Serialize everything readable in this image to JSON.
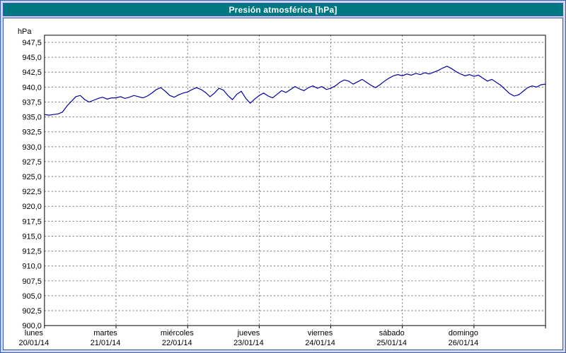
{
  "title": "Presión atmosférica [hPa]",
  "colors": {
    "background": "#ccd6ee",
    "frame_border": "#3a5fa8",
    "title_bar": "#007882",
    "title_text": "#ffffff",
    "plot_background": "#ffffff",
    "grid": "#6f6f6f",
    "axis": "#000000",
    "axis_text": "#000000",
    "series_line": "#0000a0"
  },
  "chart_data": {
    "type": "line",
    "title": "Presión atmosférica [hPa]",
    "y_unit_label": "hPa",
    "ylim": [
      900.0,
      947.5
    ],
    "y_step": 2.5,
    "y_tick_labels": [
      "947,5",
      "945,0",
      "942,5",
      "940,0",
      "937,5",
      "935,0",
      "932,5",
      "930,0",
      "927,5",
      "925,0",
      "922,5",
      "920,0",
      "917,5",
      "915,0",
      "912,5",
      "910,0",
      "907,5",
      "905,0",
      "902,5",
      "900,0"
    ],
    "grid": "dashed",
    "legend": "none",
    "x_days": [
      {
        "day": "lunes",
        "date": "20/01/14"
      },
      {
        "day": "martes",
        "date": "21/01/14"
      },
      {
        "day": "miércoles",
        "date": "22/01/14"
      },
      {
        "day": "jueves",
        "date": "23/01/14"
      },
      {
        "day": "viernes",
        "date": "24/01/14"
      },
      {
        "day": "sábado",
        "date": "25/01/14"
      },
      {
        "day": "domingo",
        "date": "26/01/14"
      }
    ],
    "points_per_day": 16,
    "series": [
      {
        "name": "Presión atmosférica",
        "values": [
          935.4,
          935.3,
          935.4,
          935.5,
          935.8,
          936.8,
          937.6,
          938.4,
          938.6,
          937.9,
          937.5,
          937.8,
          938.1,
          938.3,
          938.0,
          938.2,
          938.2,
          938.4,
          938.1,
          938.3,
          938.6,
          938.4,
          938.2,
          938.5,
          939.0,
          939.6,
          939.9,
          939.3,
          938.6,
          938.3,
          938.7,
          939.0,
          939.2,
          939.6,
          939.9,
          939.6,
          939.1,
          938.4,
          939.0,
          939.8,
          939.5,
          938.6,
          937.9,
          938.8,
          939.3,
          938.1,
          937.3,
          938.0,
          938.6,
          939.0,
          938.5,
          938.2,
          938.8,
          939.4,
          939.1,
          939.6,
          940.1,
          939.7,
          939.4,
          939.9,
          940.2,
          939.8,
          940.1,
          939.6,
          939.8,
          940.2,
          940.8,
          941.2,
          941.0,
          940.5,
          940.9,
          941.3,
          940.8,
          940.3,
          939.9,
          940.4,
          941.0,
          941.5,
          941.9,
          942.1,
          941.9,
          942.2,
          942.0,
          942.3,
          942.1,
          942.4,
          942.2,
          942.5,
          942.8,
          943.2,
          943.5,
          943.1,
          942.6,
          942.2,
          941.9,
          942.1,
          941.8,
          942.0,
          941.5,
          941.0,
          941.3,
          940.8,
          940.3,
          939.6,
          938.9,
          938.5,
          938.7,
          939.3,
          939.9,
          940.2,
          940.0,
          940.4,
          940.5
        ]
      }
    ]
  }
}
